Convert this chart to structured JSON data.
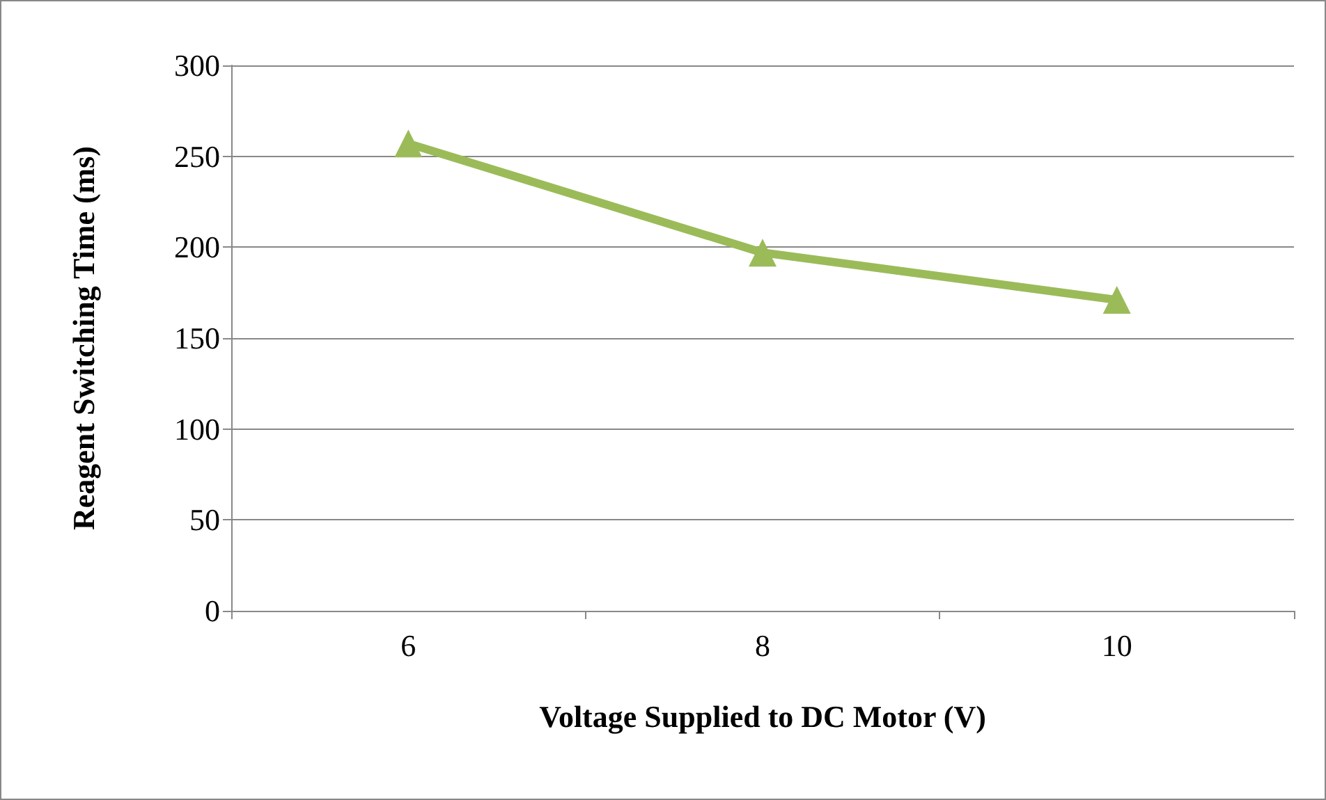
{
  "chart_data": {
    "type": "line",
    "xlabel": "Voltage Supplied to DC Motor (V)",
    "ylabel": "Reagent Switching Time (ms)",
    "categories": [
      "6",
      "8",
      "10"
    ],
    "series": [
      {
        "color": "#9bbb59",
        "values": [
          257,
          197,
          171
        ]
      }
    ],
    "ylim": [
      0,
      300
    ],
    "yticks": [
      0,
      50,
      100,
      150,
      200,
      250,
      300
    ],
    "grid": "y",
    "marker": "triangle",
    "line_style": "solid"
  }
}
